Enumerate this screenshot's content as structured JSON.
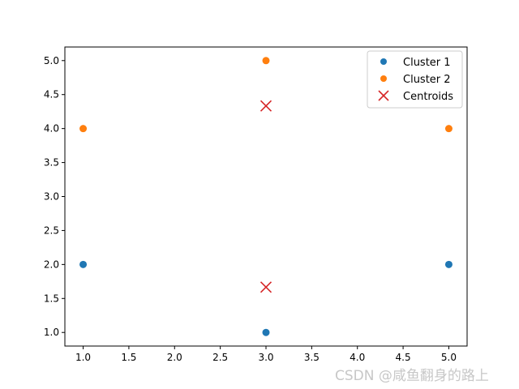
{
  "chart_data": {
    "type": "scatter",
    "title": "",
    "xlabel": "",
    "ylabel": "",
    "xlim": [
      0.8,
      5.2
    ],
    "ylim": [
      0.8,
      5.2
    ],
    "xticks": [
      1.0,
      1.5,
      2.0,
      2.5,
      3.0,
      3.5,
      4.0,
      4.5,
      5.0
    ],
    "yticks": [
      1.0,
      1.5,
      2.0,
      2.5,
      3.0,
      3.5,
      4.0,
      4.5,
      5.0
    ],
    "xtick_labels": [
      "1.0",
      "1.5",
      "2.0",
      "2.5",
      "3.0",
      "3.5",
      "4.0",
      "4.5",
      "5.0"
    ],
    "ytick_labels": [
      "1.0",
      "1.5",
      "2.0",
      "2.5",
      "3.0",
      "3.5",
      "4.0",
      "4.5",
      "5.0"
    ],
    "grid": false,
    "legend_position": "top-right",
    "series": [
      {
        "name": "Cluster 1",
        "marker": "circle",
        "color": "#1f77b4",
        "points": [
          {
            "x": 1,
            "y": 2
          },
          {
            "x": 3,
            "y": 1
          },
          {
            "x": 5,
            "y": 2
          }
        ]
      },
      {
        "name": "Cluster 2",
        "marker": "circle",
        "color": "#ff7f0e",
        "points": [
          {
            "x": 1,
            "y": 4
          },
          {
            "x": 3,
            "y": 5
          },
          {
            "x": 5,
            "y": 4
          }
        ]
      },
      {
        "name": "Centroids",
        "marker": "x",
        "color": "#d62728",
        "points": [
          {
            "x": 3,
            "y": 4.333
          },
          {
            "x": 3,
            "y": 1.667
          }
        ]
      }
    ]
  },
  "watermark": "CSDN @咸鱼翻身的路上"
}
